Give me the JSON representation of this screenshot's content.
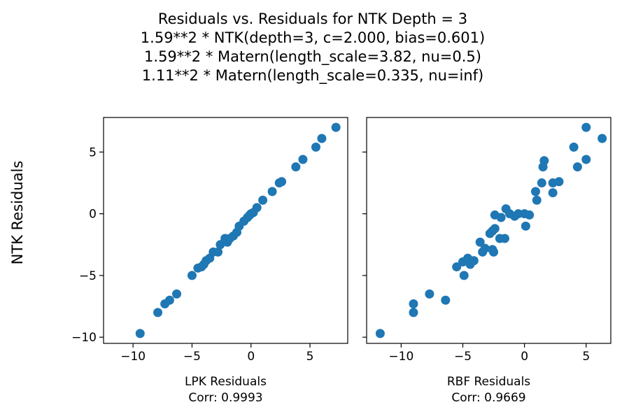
{
  "figure": {
    "title_lines": [
      "Residuals vs. Residuals for NTK Depth = 3",
      "1.59**2 * NTK(depth=3, c=2.000, bias=0.601)",
      "1.59**2 * Matern(length_scale=3.82, nu=0.5)",
      "1.11**2 * Matern(length_scale=0.335, nu=inf)"
    ],
    "shared_ylabel": "NTK Residuals",
    "marker_color": "#1f77b4"
  },
  "chart_data": [
    {
      "type": "scatter",
      "xlabel": "LPK Residuals",
      "corr_label": "Corr: 0.9993",
      "xlim": [
        -12.5,
        8.2
      ],
      "ylim": [
        -10.5,
        7.8
      ],
      "xticks": [
        -10,
        -5,
        0,
        5
      ],
      "xtick_labels": [
        "−10",
        "−5",
        "0",
        "5"
      ],
      "yticks": [
        -10,
        -5,
        0,
        5
      ],
      "ytick_labels": [
        "−10",
        "−5",
        "0",
        "5"
      ],
      "points": [
        [
          -9.4,
          -9.7
        ],
        [
          -7.9,
          -8.0
        ],
        [
          -7.3,
          -7.3
        ],
        [
          -6.9,
          -7.0
        ],
        [
          -6.3,
          -6.5
        ],
        [
          -5.0,
          -5.0
        ],
        [
          -4.5,
          -4.4
        ],
        [
          -4.2,
          -4.3
        ],
        [
          -4.0,
          -4.1
        ],
        [
          -3.8,
          -3.8
        ],
        [
          -3.5,
          -3.6
        ],
        [
          -3.2,
          -3.1
        ],
        [
          -2.8,
          -3.1
        ],
        [
          -2.6,
          -2.5
        ],
        [
          -2.2,
          -2.0
        ],
        [
          -2.0,
          -2.3
        ],
        [
          -1.8,
          -2.0
        ],
        [
          -1.5,
          -1.8
        ],
        [
          -1.2,
          -1.5
        ],
        [
          -1.0,
          -1.0
        ],
        [
          -0.6,
          -0.6
        ],
        [
          -0.3,
          -0.3
        ],
        [
          -0.1,
          -0.1
        ],
        [
          0.0,
          0.0
        ],
        [
          0.2,
          0.1
        ],
        [
          0.5,
          0.5
        ],
        [
          1.0,
          1.1
        ],
        [
          1.8,
          1.8
        ],
        [
          2.4,
          2.5
        ],
        [
          2.6,
          2.6
        ],
        [
          3.8,
          3.8
        ],
        [
          4.4,
          4.4
        ],
        [
          5.5,
          5.4
        ],
        [
          6.0,
          6.1
        ],
        [
          7.2,
          7.0
        ]
      ]
    },
    {
      "type": "scatter",
      "xlabel": "RBF Residuals",
      "corr_label": "Corr: 0.9669",
      "xlim": [
        -12.8,
        7.0
      ],
      "ylim": [
        -10.5,
        7.8
      ],
      "xticks": [
        -10,
        -5,
        0,
        5
      ],
      "xtick_labels": [
        "−10",
        "−5",
        "0",
        "5"
      ],
      "yticks": [
        -10,
        -5,
        0,
        5
      ],
      "ytick_labels": [
        "",
        "",
        "",
        ""
      ],
      "points": [
        [
          -11.7,
          -9.7
        ],
        [
          -9.0,
          -8.0
        ],
        [
          -9.0,
          -7.3
        ],
        [
          -7.7,
          -6.5
        ],
        [
          -6.4,
          -7.0
        ],
        [
          -5.5,
          -4.3
        ],
        [
          -4.9,
          -5.0
        ],
        [
          -5.0,
          -3.9
        ],
        [
          -4.6,
          -3.6
        ],
        [
          -4.4,
          -4.1
        ],
        [
          -4.1,
          -3.8
        ],
        [
          -3.6,
          -2.3
        ],
        [
          -3.4,
          -3.1
        ],
        [
          -3.2,
          -2.8
        ],
        [
          -2.8,
          -1.6
        ],
        [
          -2.6,
          -2.9
        ],
        [
          -2.5,
          -3.1
        ],
        [
          -2.6,
          -1.4
        ],
        [
          -2.4,
          -1.2
        ],
        [
          -2.4,
          -0.1
        ],
        [
          -2.0,
          -2.0
        ],
        [
          -1.6,
          -2.0
        ],
        [
          -1.9,
          -0.3
        ],
        [
          -1.5,
          0.4
        ],
        [
          -1.2,
          0.0
        ],
        [
          -0.8,
          -0.2
        ],
        [
          -0.5,
          0.0
        ],
        [
          0.0,
          0.0
        ],
        [
          0.1,
          -1.0
        ],
        [
          0.4,
          -0.1
        ],
        [
          0.9,
          1.8
        ],
        [
          1.0,
          1.1
        ],
        [
          1.4,
          2.5
        ],
        [
          1.5,
          3.8
        ],
        [
          1.6,
          4.3
        ],
        [
          2.3,
          1.7
        ],
        [
          2.3,
          2.5
        ],
        [
          2.8,
          2.6
        ],
        [
          4.0,
          5.4
        ],
        [
          4.3,
          3.8
        ],
        [
          5.0,
          4.4
        ],
        [
          5.0,
          7.0
        ],
        [
          6.3,
          6.1
        ]
      ]
    }
  ]
}
